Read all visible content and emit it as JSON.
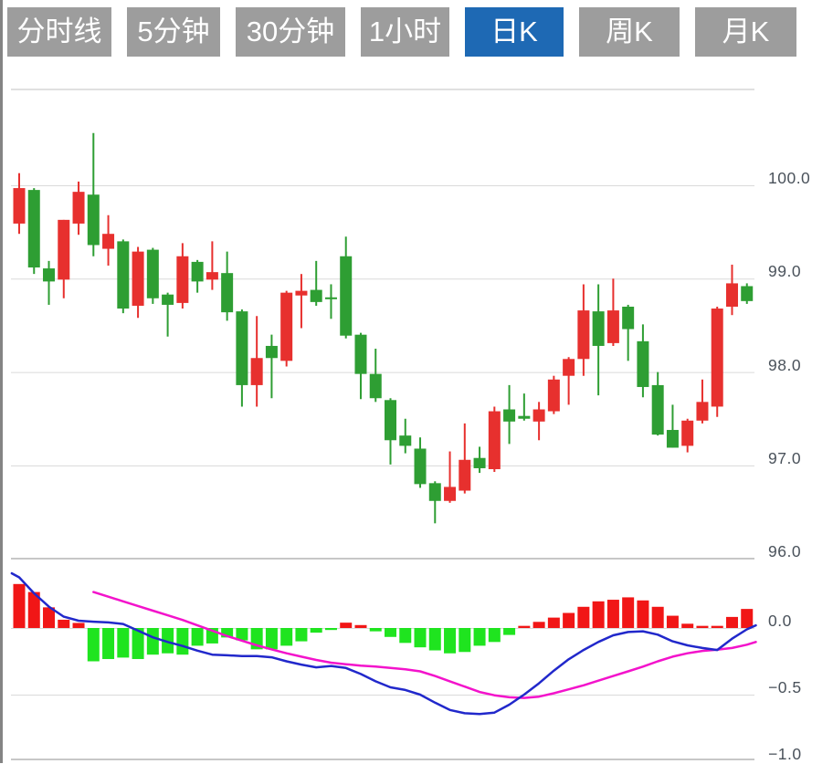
{
  "toolbar": {
    "active_index": 4,
    "active_bg": "#1e69b4",
    "inactive_bg": "#9d9d9d",
    "text_color": "#ffffff",
    "tabs": [
      {
        "label": "分时线"
      },
      {
        "label": "5分钟"
      },
      {
        "label": "30分钟"
      },
      {
        "label": "1小时"
      },
      {
        "label": "日K"
      },
      {
        "label": "周K"
      },
      {
        "label": "月K"
      }
    ]
  },
  "price_axis": {
    "ticks": [
      {
        "label": "100.0",
        "value": 100.0
      },
      {
        "label": "99.0",
        "value": 99.0
      },
      {
        "label": "98.0",
        "value": 98.0
      },
      {
        "label": "97.0",
        "value": 97.0
      },
      {
        "label": "96.0",
        "value": 96.0
      }
    ]
  },
  "macd_axis": {
    "ticks": [
      {
        "label": "0.0",
        "value": 0
      },
      {
        "label": "−0.5",
        "value": -0.5
      },
      {
        "label": "−1.0",
        "value": -1.0
      }
    ]
  },
  "chart_data": {
    "type": "candlestick-with-macd",
    "interval_selected": "日K",
    "colors": {
      "candle_up": "#e7302e",
      "candle_down": "#2e9e33",
      "hist_up": "#f11616",
      "hist_down": "#1fe41f",
      "dif_line": "#2128cb",
      "dea_line": "#f313cb",
      "grid": "#dadada",
      "panel_border": "#c7c7c7",
      "axis_text": "#4a525b"
    },
    "panels": [
      {
        "type": "candlestick",
        "ylim": [
          95.9,
          101.0
        ],
        "gridlines": [
          100.0,
          99.0,
          98.0,
          97.0,
          96.0
        ],
        "candles": [
          {
            "o": 99.59,
            "h": 100.13,
            "l": 99.48,
            "c": 99.97,
            "dir": "up"
          },
          {
            "o": 99.95,
            "h": 99.97,
            "l": 99.05,
            "c": 99.12,
            "dir": "down"
          },
          {
            "o": 99.11,
            "h": 99.19,
            "l": 98.72,
            "c": 98.97,
            "dir": "down"
          },
          {
            "o": 98.99,
            "h": 99.63,
            "l": 98.79,
            "c": 99.63,
            "dir": "up"
          },
          {
            "o": 99.59,
            "h": 100.04,
            "l": 99.47,
            "c": 99.93,
            "dir": "up"
          },
          {
            "o": 99.9,
            "h": 100.56,
            "l": 99.24,
            "c": 99.36,
            "dir": "down"
          },
          {
            "o": 99.32,
            "h": 99.68,
            "l": 99.14,
            "c": 99.48,
            "dir": "up"
          },
          {
            "o": 99.4,
            "h": 99.42,
            "l": 98.63,
            "c": 98.68,
            "dir": "down"
          },
          {
            "o": 98.71,
            "h": 99.34,
            "l": 98.58,
            "c": 99.29,
            "dir": "up"
          },
          {
            "o": 99.31,
            "h": 99.33,
            "l": 98.73,
            "c": 98.79,
            "dir": "down"
          },
          {
            "o": 98.83,
            "h": 98.85,
            "l": 98.38,
            "c": 98.72,
            "dir": "down"
          },
          {
            "o": 98.74,
            "h": 99.38,
            "l": 98.68,
            "c": 99.24,
            "dir": "up"
          },
          {
            "o": 99.18,
            "h": 99.2,
            "l": 98.85,
            "c": 98.97,
            "dir": "down"
          },
          {
            "o": 98.99,
            "h": 99.4,
            "l": 98.88,
            "c": 99.07,
            "dir": "up"
          },
          {
            "o": 99.06,
            "h": 99.29,
            "l": 98.55,
            "c": 98.64,
            "dir": "down"
          },
          {
            "o": 98.65,
            "h": 98.67,
            "l": 97.63,
            "c": 97.86,
            "dir": "down"
          },
          {
            "o": 97.86,
            "h": 98.6,
            "l": 97.63,
            "c": 98.15,
            "dir": "up"
          },
          {
            "o": 98.28,
            "h": 98.4,
            "l": 97.72,
            "c": 98.15,
            "dir": "down"
          },
          {
            "o": 98.12,
            "h": 98.87,
            "l": 98.06,
            "c": 98.85,
            "dir": "up"
          },
          {
            "o": 98.82,
            "h": 99.05,
            "l": 98.47,
            "c": 98.87,
            "dir": "up"
          },
          {
            "o": 98.88,
            "h": 99.19,
            "l": 98.71,
            "c": 98.75,
            "dir": "down"
          },
          {
            "o": 98.8,
            "h": 98.94,
            "l": 98.57,
            "c": 98.78,
            "dir": "down"
          },
          {
            "o": 99.24,
            "h": 99.45,
            "l": 98.36,
            "c": 98.39,
            "dir": "down"
          },
          {
            "o": 98.4,
            "h": 98.42,
            "l": 97.71,
            "c": 97.98,
            "dir": "down"
          },
          {
            "o": 97.98,
            "h": 98.25,
            "l": 97.68,
            "c": 97.72,
            "dir": "down"
          },
          {
            "o": 97.7,
            "h": 97.72,
            "l": 97.01,
            "c": 97.27,
            "dir": "down"
          },
          {
            "o": 97.32,
            "h": 97.5,
            "l": 97.13,
            "c": 97.21,
            "dir": "down"
          },
          {
            "o": 97.18,
            "h": 97.3,
            "l": 96.76,
            "c": 96.8,
            "dir": "down"
          },
          {
            "o": 96.81,
            "h": 96.83,
            "l": 96.38,
            "c": 96.62,
            "dir": "down"
          },
          {
            "o": 96.62,
            "h": 97.15,
            "l": 96.6,
            "c": 96.77,
            "dir": "up"
          },
          {
            "o": 96.73,
            "h": 97.45,
            "l": 96.7,
            "c": 97.06,
            "dir": "up"
          },
          {
            "o": 97.08,
            "h": 97.2,
            "l": 96.92,
            "c": 96.97,
            "dir": "down"
          },
          {
            "o": 96.96,
            "h": 97.63,
            "l": 96.93,
            "c": 97.58,
            "dir": "up"
          },
          {
            "o": 97.6,
            "h": 97.86,
            "l": 97.23,
            "c": 97.47,
            "dir": "down"
          },
          {
            "o": 97.53,
            "h": 97.77,
            "l": 97.48,
            "c": 97.5,
            "dir": "down"
          },
          {
            "o": 97.47,
            "h": 97.68,
            "l": 97.27,
            "c": 97.6,
            "dir": "up"
          },
          {
            "o": 97.58,
            "h": 97.96,
            "l": 97.55,
            "c": 97.92,
            "dir": "up"
          },
          {
            "o": 97.96,
            "h": 98.16,
            "l": 97.65,
            "c": 98.14,
            "dir": "up"
          },
          {
            "o": 98.14,
            "h": 98.94,
            "l": 97.96,
            "c": 98.66,
            "dir": "up"
          },
          {
            "o": 98.65,
            "h": 98.94,
            "l": 97.75,
            "c": 98.28,
            "dir": "down"
          },
          {
            "o": 98.31,
            "h": 99.0,
            "l": 98.28,
            "c": 98.66,
            "dir": "up"
          },
          {
            "o": 98.7,
            "h": 98.72,
            "l": 98.12,
            "c": 98.46,
            "dir": "down"
          },
          {
            "o": 98.33,
            "h": 98.51,
            "l": 97.73,
            "c": 97.84,
            "dir": "down"
          },
          {
            "o": 97.86,
            "h": 98.0,
            "l": 97.32,
            "c": 97.33,
            "dir": "down"
          },
          {
            "o": 97.38,
            "h": 97.65,
            "l": 97.19,
            "c": 97.19,
            "dir": "down"
          },
          {
            "o": 97.21,
            "h": 97.5,
            "l": 97.14,
            "c": 97.48,
            "dir": "up"
          },
          {
            "o": 97.48,
            "h": 97.92,
            "l": 97.45,
            "c": 97.68,
            "dir": "up"
          },
          {
            "o": 97.63,
            "h": 98.7,
            "l": 97.52,
            "c": 98.68,
            "dir": "up"
          },
          {
            "o": 98.7,
            "h": 99.15,
            "l": 98.61,
            "c": 98.95,
            "dir": "up"
          },
          {
            "o": 98.92,
            "h": 98.95,
            "l": 98.73,
            "c": 98.76,
            "dir": "down"
          }
        ]
      },
      {
        "type": "macd",
        "ylim": [
          -1.02,
          0.5
        ],
        "gridlines": [
          0,
          -0.5,
          -1.0
        ],
        "histogram": [
          0.33,
          0.27,
          0.155,
          0.062,
          0.038,
          -0.25,
          -0.233,
          -0.222,
          -0.233,
          -0.2,
          -0.19,
          -0.2,
          -0.133,
          -0.116,
          -0.071,
          -0.093,
          -0.16,
          -0.16,
          -0.133,
          -0.1,
          -0.035,
          -0.015,
          0.04,
          0.022,
          -0.025,
          -0.067,
          -0.112,
          -0.145,
          -0.168,
          -0.19,
          -0.18,
          -0.133,
          -0.105,
          -0.052,
          0.016,
          0.046,
          0.078,
          0.113,
          0.159,
          0.2,
          0.212,
          0.23,
          0.207,
          0.159,
          0.092,
          0.032,
          0.016,
          0.016,
          0.083,
          0.143
        ],
        "dif": [
          [
            -0.5,
            0.41
          ],
          [
            0,
            0.38
          ],
          [
            1,
            0.26
          ],
          [
            2,
            0.16
          ],
          [
            3,
            0.085
          ],
          [
            4,
            0.055
          ],
          [
            5,
            0.047
          ],
          [
            6,
            0.042
          ],
          [
            7,
            0.03
          ],
          [
            8,
            -0.02
          ],
          [
            9,
            -0.07
          ],
          [
            10,
            -0.105
          ],
          [
            11,
            -0.135
          ],
          [
            12,
            -0.17
          ],
          [
            13,
            -0.2
          ],
          [
            14,
            -0.205
          ],
          [
            15,
            -0.21
          ],
          [
            16,
            -0.21
          ],
          [
            17,
            -0.22
          ],
          [
            18,
            -0.25
          ],
          [
            19,
            -0.275
          ],
          [
            20,
            -0.295
          ],
          [
            21,
            -0.285
          ],
          [
            22,
            -0.3
          ],
          [
            23,
            -0.345
          ],
          [
            24,
            -0.4
          ],
          [
            25,
            -0.445
          ],
          [
            26,
            -0.465
          ],
          [
            27,
            -0.5
          ],
          [
            28,
            -0.56
          ],
          [
            29,
            -0.615
          ],
          [
            30,
            -0.64
          ],
          [
            31,
            -0.645
          ],
          [
            32,
            -0.635
          ],
          [
            33,
            -0.575
          ],
          [
            34,
            -0.5
          ],
          [
            35,
            -0.415
          ],
          [
            36,
            -0.32
          ],
          [
            37,
            -0.235
          ],
          [
            38,
            -0.165
          ],
          [
            39,
            -0.105
          ],
          [
            40,
            -0.055
          ],
          [
            41,
            -0.03
          ],
          [
            42,
            -0.025
          ],
          [
            43,
            -0.05
          ],
          [
            44,
            -0.1
          ],
          [
            45,
            -0.13
          ],
          [
            46,
            -0.15
          ],
          [
            47,
            -0.165
          ],
          [
            48,
            -0.08
          ],
          [
            49,
            -0.01
          ],
          [
            49.6,
            0.02
          ]
        ],
        "dea": [
          [
            5,
            0.27
          ],
          [
            6,
            0.235
          ],
          [
            7,
            0.2
          ],
          [
            8,
            0.165
          ],
          [
            9,
            0.13
          ],
          [
            10,
            0.095
          ],
          [
            11,
            0.06
          ],
          [
            12,
            0.02
          ],
          [
            13,
            -0.02
          ],
          [
            14,
            -0.06
          ],
          [
            15,
            -0.095
          ],
          [
            16,
            -0.13
          ],
          [
            17,
            -0.16
          ],
          [
            18,
            -0.19
          ],
          [
            19,
            -0.215
          ],
          [
            20,
            -0.24
          ],
          [
            21,
            -0.26
          ],
          [
            22,
            -0.272
          ],
          [
            23,
            -0.282
          ],
          [
            24,
            -0.29
          ],
          [
            25,
            -0.3
          ],
          [
            26,
            -0.31
          ],
          [
            27,
            -0.325
          ],
          [
            28,
            -0.36
          ],
          [
            29,
            -0.4
          ],
          [
            30,
            -0.44
          ],
          [
            31,
            -0.48
          ],
          [
            32,
            -0.505
          ],
          [
            33,
            -0.52
          ],
          [
            34,
            -0.525
          ],
          [
            35,
            -0.515
          ],
          [
            36,
            -0.49
          ],
          [
            37,
            -0.46
          ],
          [
            38,
            -0.43
          ],
          [
            39,
            -0.395
          ],
          [
            40,
            -0.36
          ],
          [
            41,
            -0.325
          ],
          [
            42,
            -0.29
          ],
          [
            43,
            -0.25
          ],
          [
            44,
            -0.215
          ],
          [
            45,
            -0.19
          ],
          [
            46,
            -0.172
          ],
          [
            47,
            -0.162
          ],
          [
            48,
            -0.15
          ],
          [
            49,
            -0.125
          ],
          [
            49.6,
            -0.105
          ]
        ]
      }
    ]
  }
}
